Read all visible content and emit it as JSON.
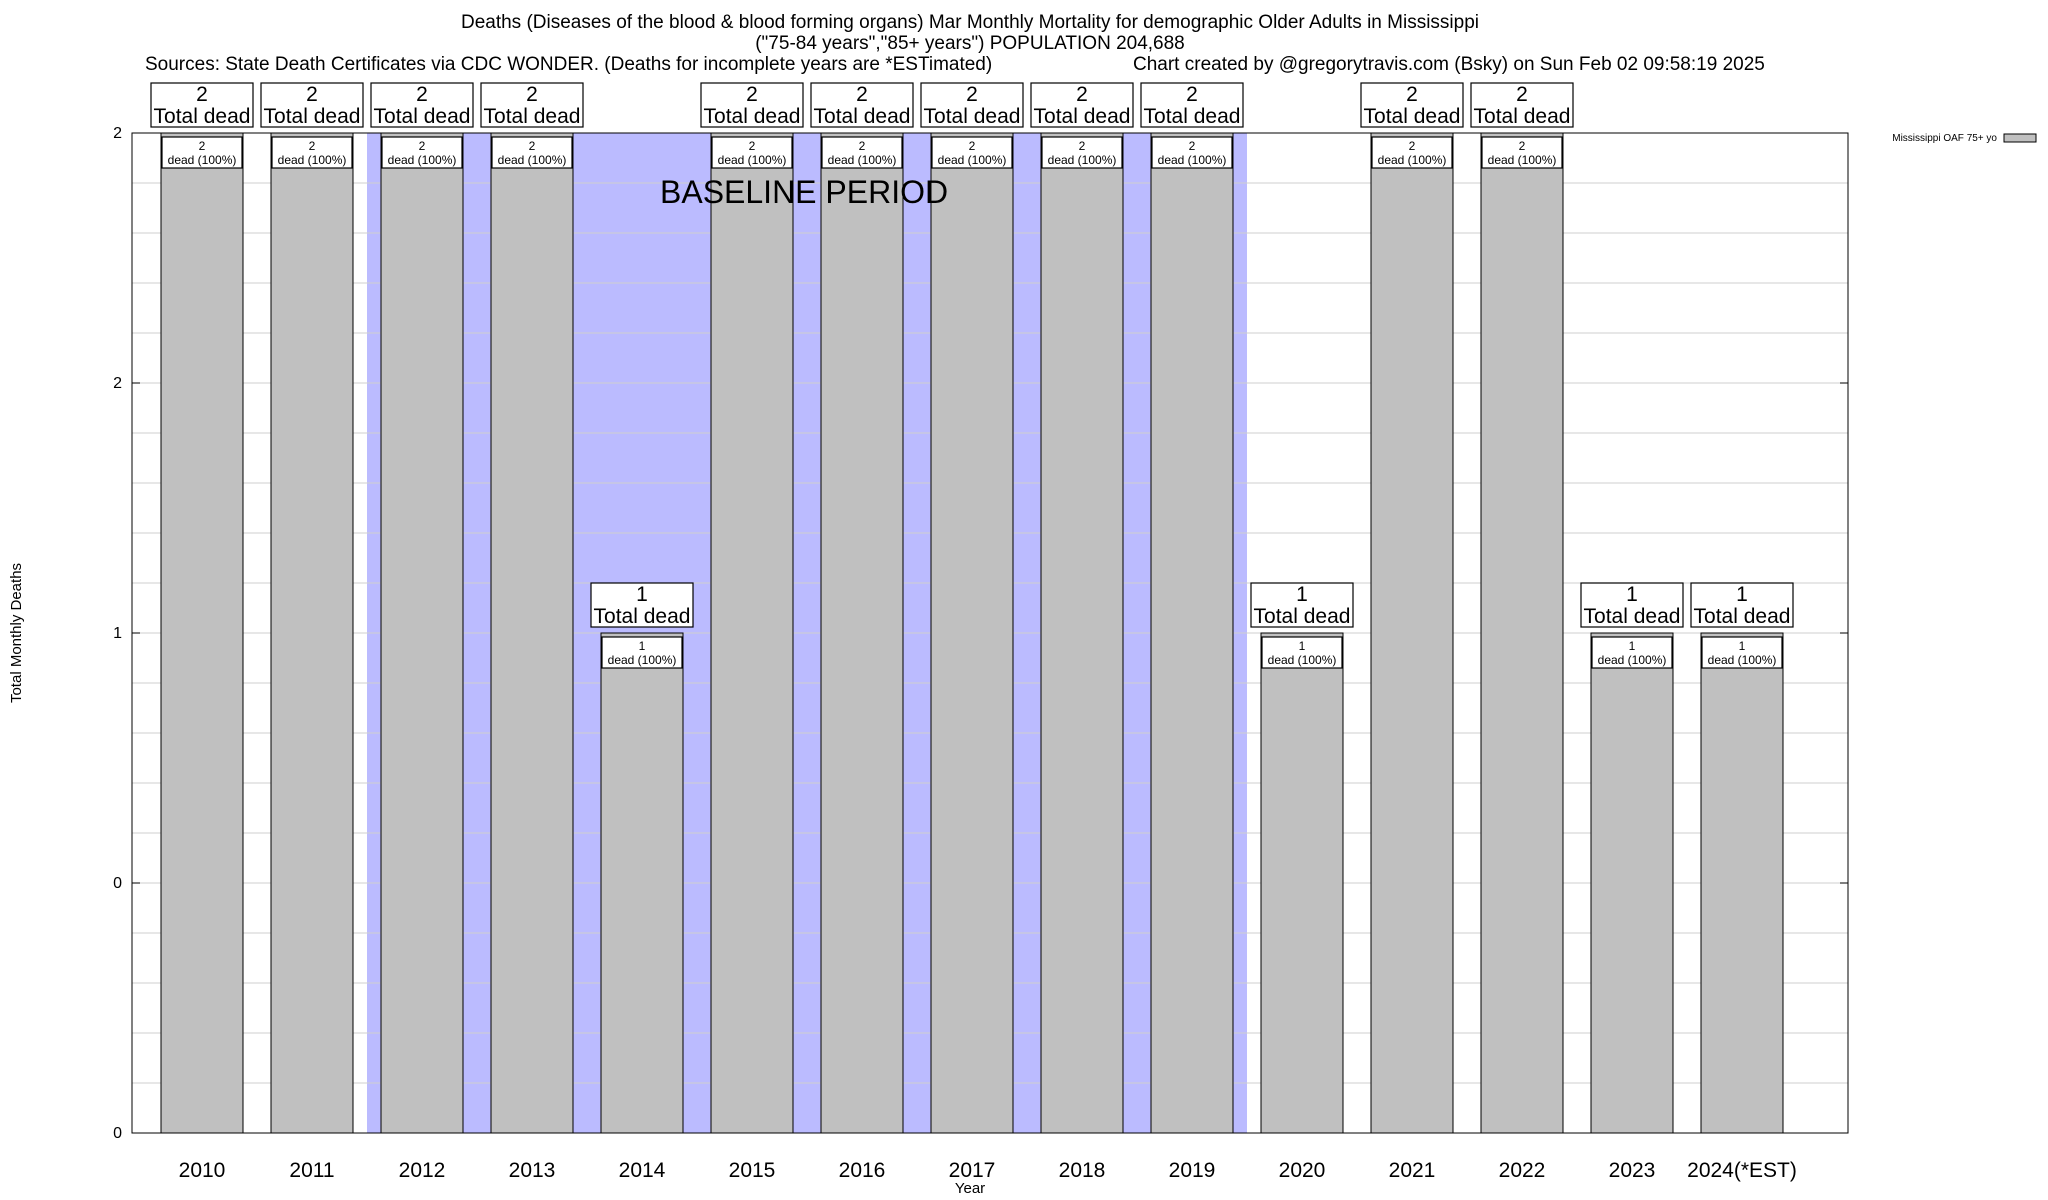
{
  "header": {
    "title_line1": "Deaths (Diseases of the blood & blood forming organs) Mar Monthly Mortality for demographic Older Adults in Mississippi",
    "title_line2": "(\"75-84 years\",\"85+ years\") POPULATION 204,688",
    "sources": "Sources: State Death Certificates via CDC WONDER. (Deaths for incomplete years are *ESTimated)",
    "credit": "Chart created by @gregorytravis.com (Bsky) on Sun Feb 02 09:58:19 2025"
  },
  "chart_data": {
    "type": "bar",
    "categories": [
      "2010",
      "2011",
      "2012",
      "2013",
      "2014",
      "2015",
      "2016",
      "2017",
      "2018",
      "2019",
      "2020",
      "2021",
      "2022",
      "2023",
      "2024(*EST)"
    ],
    "series": [
      {
        "name": "Mississippi OAF 75+ yo",
        "values": [
          2,
          2,
          2,
          2,
          1,
          2,
          2,
          2,
          2,
          2,
          1,
          2,
          2,
          1,
          1
        ]
      }
    ],
    "top_labels": [
      "2\nTotal dead",
      "2\nTotal dead",
      "2\nTotal dead",
      "2\nTotal dead",
      "1\nTotal dead",
      "2\nTotal dead",
      "2\nTotal dead",
      "2\nTotal dead",
      "2\nTotal dead",
      "2\nTotal dead",
      "1\nTotal dead",
      "2\nTotal dead",
      "2\nTotal dead",
      "1\nTotal dead",
      "1\nTotal dead"
    ],
    "inner_labels": [
      "2\ndead (100%)",
      "2\ndead (100%)",
      "2\ndead (100%)",
      "2\ndead (100%)",
      "1\ndead (100%)",
      "2\ndead (100%)",
      "2\ndead (100%)",
      "2\ndead (100%)",
      "2\ndead (100%)",
      "2\ndead (100%)",
      "1\ndead (100%)",
      "2\ndead (100%)",
      "2\ndead (100%)",
      "1\ndead (100%)",
      "1\ndead (100%)"
    ],
    "baseline_period": {
      "label": "BASELINE PERIOD",
      "from": "2012",
      "to": "2019"
    },
    "xlabel": "Year",
    "ylabel": "Total Monthly Deaths",
    "ylim": [
      0,
      2
    ],
    "y_tick_labels": [
      "0",
      "0",
      "1",
      "2",
      "2"
    ],
    "grid": true,
    "legend_position": "top-right",
    "colors": {
      "bar": "#c0c0c0",
      "baseline": "#bbbbff"
    }
  }
}
